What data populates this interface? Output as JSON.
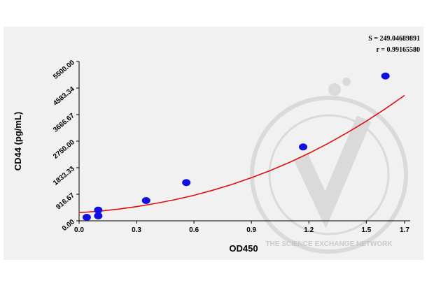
{
  "chart_data": {
    "type": "scatter",
    "x_label": "OD450",
    "y_label": "CD44 (pg/mL)",
    "annotations": [
      "S = 249.04689891",
      "r = 0.99165580"
    ],
    "watermark": "THE SCIENCE EXCHANGE NETWORK",
    "x": [
      0.04,
      0.1,
      0.1,
      0.35,
      0.56,
      1.17,
      1.6
    ],
    "values": [
      120,
      170,
      370,
      700,
      1320,
      2550,
      5000
    ],
    "color": "#1010e0",
    "curve": {
      "color": "#e01010",
      "x": [
        0,
        0.1,
        0.2,
        0.3,
        0.4,
        0.5,
        0.6,
        0.7,
        0.8,
        0.9,
        1.0,
        1.1,
        1.2,
        1.3,
        1.4,
        1.5,
        1.6,
        1.7
      ],
      "values": [
        280,
        330,
        400,
        490,
        600,
        730,
        880,
        1060,
        1260,
        1490,
        1740,
        2020,
        2330,
        2670,
        3040,
        3440,
        3870,
        4330
      ]
    },
    "xlim": [
      0,
      1.7
    ],
    "ylim": [
      0,
      5500
    ],
    "xticks": [
      {
        "value": 0,
        "label": "0.0"
      },
      0.3,
      0.6,
      0.9,
      1.2,
      1.5,
      1.7
    ],
    "yticks": [
      {
        "value": 0,
        "label": "0.00"
      },
      {
        "value": 916.67,
        "label": "916.67"
      },
      {
        "value": 1833.33,
        "label": "1833.33"
      },
      {
        "value": 2750,
        "label": "2750.00"
      },
      {
        "value": 3666.67,
        "label": "3666.67"
      },
      {
        "value": 4583.34,
        "label": "4583.34"
      },
      {
        "value": 5500,
        "label": "5500.00"
      }
    ]
  }
}
